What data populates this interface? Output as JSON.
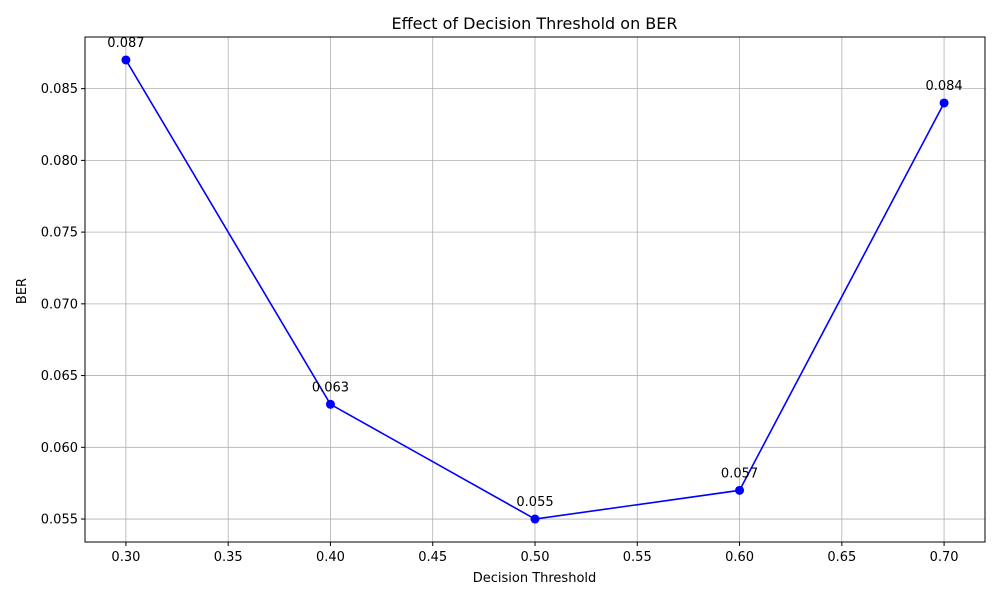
{
  "chart_data": {
    "type": "line",
    "title": "Effect of Decision Threshold on BER",
    "xlabel": "Decision Threshold",
    "ylabel": "BER",
    "xlim": [
      0.28,
      0.72
    ],
    "ylim": [
      0.0534,
      0.0886
    ],
    "xticks": [
      0.3,
      0.35,
      0.4,
      0.45,
      0.5,
      0.55,
      0.6,
      0.65,
      0.7
    ],
    "xtick_labels": [
      "0.30",
      "0.35",
      "0.40",
      "0.45",
      "0.50",
      "0.55",
      "0.60",
      "0.65",
      "0.70"
    ],
    "yticks": [
      0.055,
      0.06,
      0.065,
      0.07,
      0.075,
      0.08,
      0.085
    ],
    "ytick_labels": [
      "0.055",
      "0.060",
      "0.065",
      "0.070",
      "0.075",
      "0.080",
      "0.085"
    ],
    "grid": true,
    "legend": null,
    "series": [
      {
        "color": "#0000ff",
        "marker": "circle",
        "x": [
          0.3,
          0.4,
          0.5,
          0.6,
          0.7
        ],
        "y": [
          0.087,
          0.063,
          0.055,
          0.057,
          0.084
        ],
        "data_labels": [
          "0.087",
          "0.063",
          "0.055",
          "0.057",
          "0.084"
        ]
      }
    ]
  }
}
